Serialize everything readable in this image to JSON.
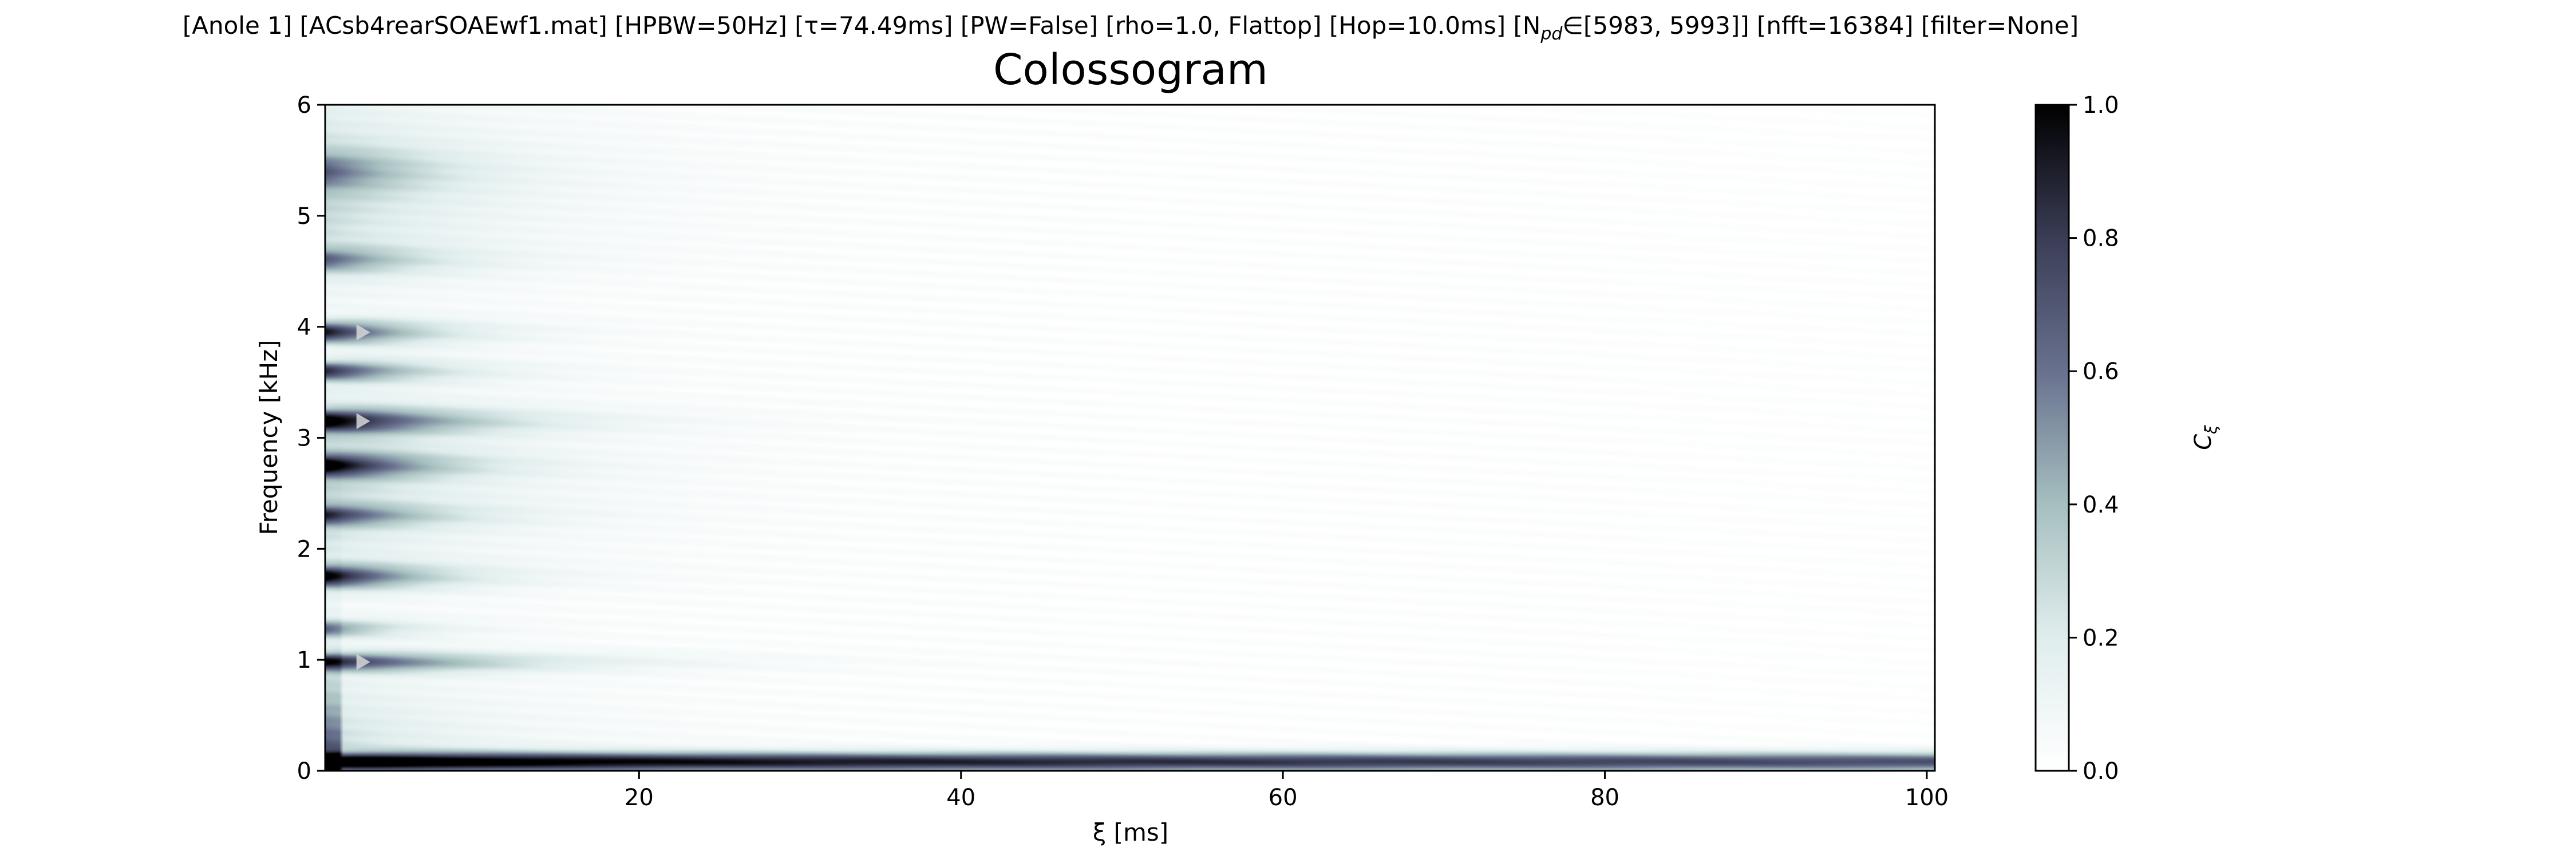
{
  "header": {
    "params": "[Anole 1]   [ACsb4rearSOAEwf1.mat]   [HPBW=50Hz]   [τ=74.49ms]   [PW=False]   [rho=1.0, Flattop]   [Hop=10.0ms]   [N",
    "params_sub": "pd",
    "params_end": "∈[5983, 5993]]   [nfft=16384]   [filter=None]"
  },
  "chart_data": {
    "type": "heatmap",
    "title": "Colossogram",
    "xlabel": "ξ [ms]",
    "ylabel": "Frequency [kHz]",
    "xlim": [
      0.5,
      100.5
    ],
    "ylim": [
      0,
      6
    ],
    "x_ticks": [
      20,
      40,
      60,
      80,
      100
    ],
    "y_ticks": [
      0,
      1,
      2,
      3,
      4,
      5,
      6
    ],
    "colorbar": {
      "label": "C",
      "label_sub": "ξ",
      "range": [
        0,
        1
      ],
      "ticks": [
        "0.0",
        "0.2",
        "0.4",
        "0.6",
        "0.8",
        "1.0"
      ],
      "colormap": "bone_r",
      "colors": [
        "#ffffff",
        "#e0eded",
        "#a6bfbf",
        "#68718f",
        "#3a3d55",
        "#000000"
      ]
    },
    "peak_markers_khz": [
      0.98,
      3.15,
      3.95
    ],
    "bands": [
      {
        "f": 0.08,
        "c0": 1.0,
        "decay_ms": 300,
        "width_khz": 0.06
      },
      {
        "f": 0.98,
        "c0": 0.85,
        "decay_ms": 9,
        "width_khz": 0.07
      },
      {
        "f": 1.28,
        "c0": 0.55,
        "decay_ms": 4,
        "width_khz": 0.07
      },
      {
        "f": 1.75,
        "c0": 0.95,
        "decay_ms": 5,
        "width_khz": 0.09
      },
      {
        "f": 2.3,
        "c0": 0.65,
        "decay_ms": 5,
        "width_khz": 0.08
      },
      {
        "f": 2.75,
        "c0": 0.9,
        "decay_ms": 5,
        "width_khz": 0.09
      },
      {
        "f": 3.15,
        "c0": 0.95,
        "decay_ms": 7,
        "width_khz": 0.09
      },
      {
        "f": 3.6,
        "c0": 0.8,
        "decay_ms": 5,
        "width_khz": 0.08
      },
      {
        "f": 3.95,
        "c0": 0.9,
        "decay_ms": 5,
        "width_khz": 0.09
      },
      {
        "f": 4.6,
        "c0": 0.5,
        "decay_ms": 5,
        "width_khz": 0.1
      },
      {
        "f": 5.4,
        "c0": 0.4,
        "decay_ms": 5,
        "width_khz": 0.15
      }
    ]
  }
}
